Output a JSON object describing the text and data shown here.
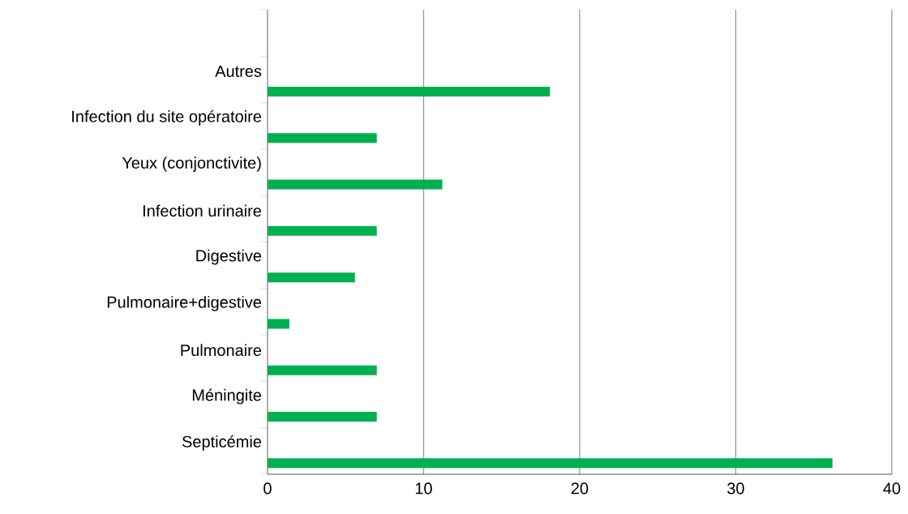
{
  "chart_data": {
    "type": "bar",
    "orientation": "horizontal",
    "categories": [
      null,
      "Autres",
      "Infection du site opératoire",
      "Yeux (conjonctivite)",
      "Infection urinaire",
      "Digestive",
      "Pulmonaire+digestive",
      "Pulmonaire",
      "Méningite",
      "Septicémie"
    ],
    "values": [
      null,
      18.1,
      7,
      11.2,
      7,
      5.6,
      1.4,
      7,
      7,
      36.2
    ],
    "color": "#00b050",
    "xlim": [
      0,
      40
    ],
    "xticks": [
      0,
      10,
      20,
      30,
      40
    ],
    "grid": "x"
  }
}
